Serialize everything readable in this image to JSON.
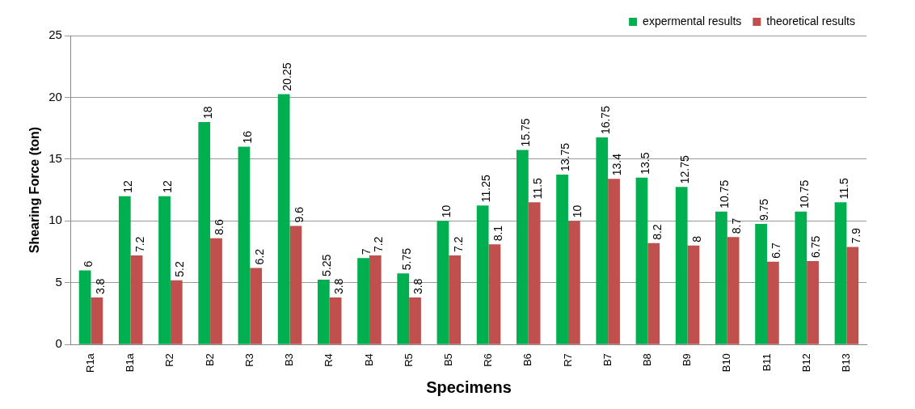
{
  "chart_data": {
    "type": "bar",
    "xlabel": "Specimens",
    "ylabel": "Shearing Force (ton)",
    "categories": [
      "R1a",
      "B1a",
      "R2",
      "B2",
      "R3",
      "B3",
      "R4",
      "B4",
      "R5",
      "B5",
      "R6",
      "B6",
      "R7",
      "B7",
      "B8",
      "B9",
      "B10",
      "B11",
      "B12",
      "B13"
    ],
    "series": [
      {
        "name": "expermental results",
        "color": "#00b050",
        "values": [
          6,
          12,
          12,
          18,
          16,
          20.25,
          5.25,
          7,
          5.75,
          10,
          11.25,
          15.75,
          13.75,
          16.75,
          13.5,
          12.75,
          10.75,
          9.75,
          10.75,
          11.5
        ]
      },
      {
        "name": "theoretical results",
        "color": "#c0504d",
        "values": [
          3.8,
          7.2,
          5.2,
          8.6,
          6.2,
          9.6,
          3.8,
          7.2,
          3.8,
          7.2,
          8.1,
          11.5,
          10,
          13.4,
          8.2,
          8,
          8.7,
          6.7,
          6.75,
          7.9
        ]
      }
    ],
    "ylim": [
      0,
      25
    ],
    "yticks": [
      0,
      5,
      10,
      15,
      20,
      25
    ],
    "grid": "y",
    "legend": "top right",
    "data_labels": true
  }
}
